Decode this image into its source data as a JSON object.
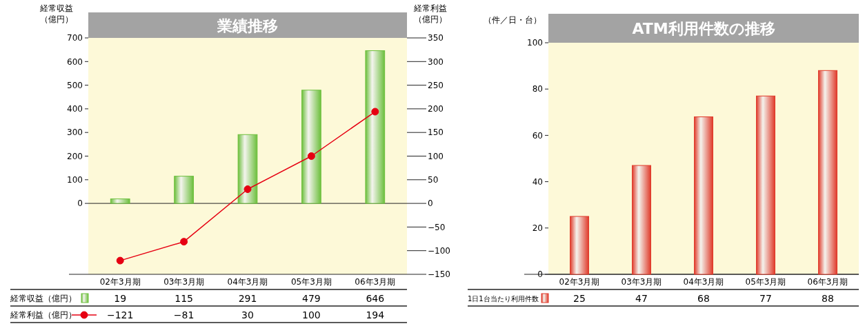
{
  "chart_data": [
    {
      "type": "bar",
      "title": "業績推移",
      "ylabel": "経常収益（億円）",
      "y2label": "経常利益（億円）",
      "categories": [
        "02年3月期",
        "03年3月期",
        "04年3月期",
        "05年3月期",
        "06年3月期"
      ],
      "series": [
        {
          "name": "経常収益（億円）",
          "color": "#6cbf3c",
          "values": [
            19,
            115,
            291,
            479,
            646
          ]
        },
        {
          "name": "経常利益（億円）",
          "type": "line",
          "axis": "y2",
          "color": "#e60012",
          "marker": "circle",
          "values": [
            -121,
            -81,
            30,
            100,
            194
          ]
        }
      ],
      "ylim": [
        -300,
        700
      ],
      "yticks": [
        0,
        100,
        200,
        300,
        400,
        500,
        600,
        700
      ],
      "y2lim": [
        -150,
        350
      ],
      "y2ticks": [
        -150,
        -100,
        -50,
        0,
        50,
        100,
        150,
        200,
        250,
        300,
        350
      ],
      "data_labels": true,
      "legend": "bottom"
    },
    {
      "type": "bar",
      "title": "ATM利用件数の推移",
      "ylabel": "（件／日・台）",
      "categories": [
        "02年3月期",
        "03年3月期",
        "04年3月期",
        "05年3月期",
        "06年3月期"
      ],
      "series": [
        {
          "name": "1日1台当たり利用件数",
          "color": "#e03a2a",
          "values": [
            25,
            47,
            68,
            77,
            88
          ]
        }
      ],
      "ylim": [
        0,
        100
      ],
      "yticks": [
        0,
        20,
        40,
        60,
        80,
        100
      ],
      "data_labels": true,
      "legend": "bottom"
    }
  ]
}
